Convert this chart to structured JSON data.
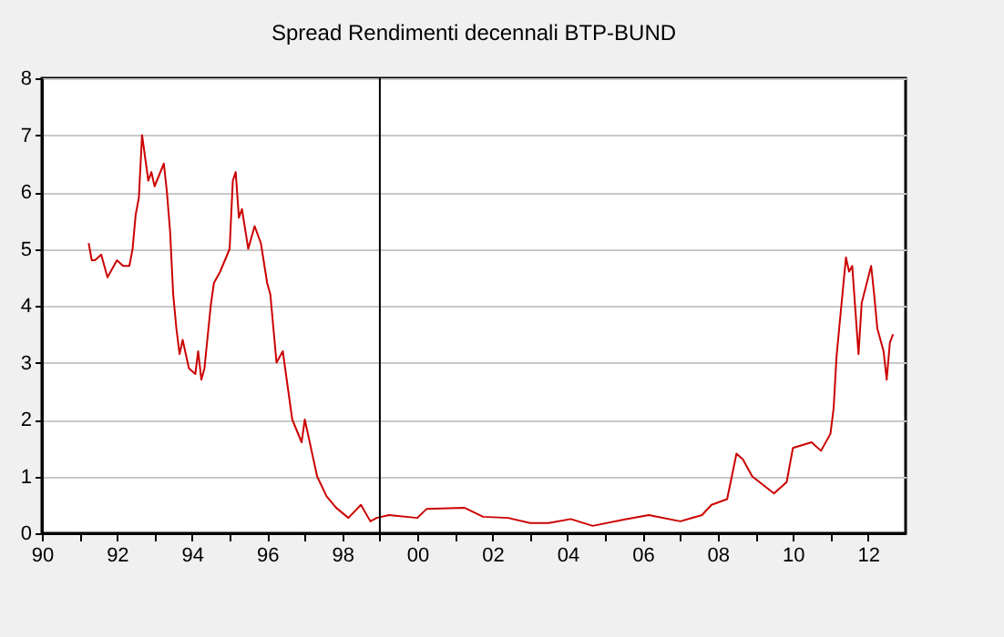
{
  "chart_data": {
    "type": "line",
    "title": "Spread Rendimenti decennali BTP-BUND",
    "x": [
      "1991-04",
      "1991-05",
      "1991-06",
      "1991-08",
      "1991-10",
      "1992-01",
      "1992-03",
      "1992-05",
      "1992-06",
      "1992-07",
      "1992-08",
      "1992-09",
      "1992-11",
      "1992-12",
      "1993-01",
      "1993-04",
      "1993-05",
      "1993-06",
      "1993-07",
      "1993-08",
      "1993-09",
      "1993-10",
      "1993-12",
      "1994-02",
      "1994-03",
      "1994-04",
      "1994-05",
      "1994-07",
      "1994-08",
      "1994-10",
      "1995-01",
      "1995-02",
      "1995-03",
      "1995-04",
      "1995-05",
      "1995-07",
      "1995-09",
      "1995-11",
      "1996-01",
      "1996-02",
      "1996-04",
      "1996-06",
      "1996-09",
      "1996-12",
      "1997-01",
      "1997-05",
      "1997-08",
      "1997-11",
      "1998-03",
      "1998-07",
      "1998-10",
      "1998-12",
      "1999-04",
      "2000-01",
      "2000-04",
      "2001-04",
      "2001-10",
      "2002-06",
      "2003-01",
      "2003-07",
      "2004-02",
      "2004-09",
      "2005-07",
      "2006-03",
      "2007-01",
      "2007-08",
      "2007-11",
      "2008-04",
      "2008-07",
      "2008-09",
      "2008-12",
      "2009-07",
      "2009-11",
      "2010-01",
      "2010-07",
      "2010-10",
      "2011-01",
      "2011-02",
      "2011-03",
      "2011-04",
      "2011-06",
      "2011-07",
      "2011-08",
      "2011-10",
      "2011-11",
      "2012-02",
      "2012-03",
      "2012-04",
      "2012-06",
      "2012-07",
      "2012-08",
      "2012-09"
    ],
    "series": [
      {
        "color": "#cc0000",
        "values": [
          5.1,
          4.8,
          4.8,
          4.9,
          4.5,
          4.8,
          4.7,
          4.7,
          5.0,
          5.6,
          5.9,
          7.0,
          6.2,
          6.35,
          6.1,
          6.5,
          6.0,
          5.3,
          4.2,
          3.6,
          3.15,
          3.4,
          2.9,
          2.8,
          3.2,
          2.7,
          2.9,
          4.0,
          4.4,
          4.6,
          5.0,
          6.2,
          6.35,
          5.55,
          5.7,
          5.0,
          5.4,
          5.1,
          4.4,
          4.2,
          3.0,
          3.2,
          2.0,
          1.6,
          2.0,
          1.0,
          0.65,
          0.45,
          0.27,
          0.5,
          0.21,
          0.27,
          0.32,
          0.27,
          0.43,
          0.45,
          0.29,
          0.27,
          0.18,
          0.18,
          0.25,
          0.13,
          0.24,
          0.32,
          0.21,
          0.32,
          0.5,
          0.6,
          1.4,
          1.3,
          1.0,
          0.7,
          0.9,
          1.5,
          1.6,
          1.45,
          1.75,
          2.2,
          3.1,
          3.7,
          4.85,
          4.6,
          4.7,
          3.15,
          4.05,
          4.7,
          4.2,
          3.6,
          3.2,
          2.7,
          3.35,
          3.5
        ]
      }
    ],
    "xlim": [
      "1990-01",
      "2013-01"
    ],
    "xticks": [
      {
        "value": "1990-01",
        "label": "90"
      },
      {
        "value": "1991-01",
        "label": null
      },
      {
        "value": "1992-01",
        "label": "92"
      },
      {
        "value": "1993-01",
        "label": null
      },
      {
        "value": "1994-01",
        "label": "94"
      },
      {
        "value": "1995-01",
        "label": null
      },
      {
        "value": "1996-01",
        "label": "96"
      },
      {
        "value": "1997-01",
        "label": null
      },
      {
        "value": "1998-01",
        "label": "98"
      },
      {
        "value": "1999-01",
        "label": null
      },
      {
        "value": "2000-01",
        "label": "00"
      },
      {
        "value": "2001-01",
        "label": null
      },
      {
        "value": "2002-01",
        "label": "02"
      },
      {
        "value": "2003-01",
        "label": null
      },
      {
        "value": "2004-01",
        "label": "04"
      },
      {
        "value": "2005-01",
        "label": null
      },
      {
        "value": "2006-01",
        "label": "06"
      },
      {
        "value": "2007-01",
        "label": null
      },
      {
        "value": "2008-01",
        "label": "08"
      },
      {
        "value": "2009-01",
        "label": null
      },
      {
        "value": "2010-01",
        "label": "10"
      },
      {
        "value": "2011-01",
        "label": null
      },
      {
        "value": "2012-01",
        "label": "12"
      }
    ],
    "ylim": [
      0,
      8
    ],
    "yticks": [
      0,
      1,
      2,
      3,
      4,
      5,
      6,
      7,
      8
    ],
    "grid": "y",
    "ref_lines": [
      {
        "axis": "x",
        "value": "1999-01",
        "color": "#000000"
      }
    ]
  }
}
